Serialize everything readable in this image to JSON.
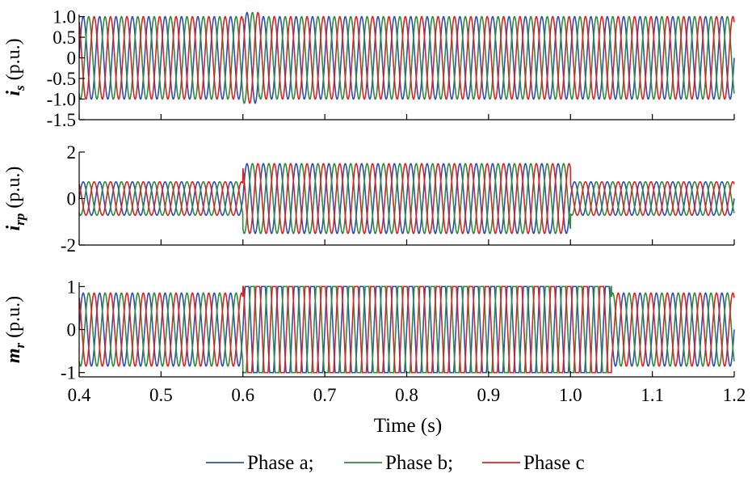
{
  "chart_data": {
    "type": "line",
    "xlabel": "Time (s)",
    "xlim": [
      0.4,
      1.2
    ],
    "xticks": [
      "0.4",
      "0.5",
      "0.6",
      "0.7",
      "0.8",
      "0.9",
      "1.0",
      "1.1",
      "1.2"
    ],
    "grid": false,
    "legend": {
      "placement": "bottom-center",
      "entries": [
        "Phase a;",
        "Phase b;",
        "Phase c"
      ]
    },
    "colors": {
      "a": "#2f4fb0",
      "b": "#2e8b3a",
      "c": "#e02020"
    },
    "frequency_hz": 50,
    "panels": [
      {
        "ylabel_main": "i",
        "ylabel_sub": "s",
        "ylabel_unit": " (p.u.)",
        "ylim": [
          -1.5,
          1.05
        ],
        "yticks": [
          {
            "v": 1.0,
            "label": "1.0"
          },
          {
            "v": 0.5,
            "label": "0.5"
          },
          {
            "v": 0,
            "label": "0"
          },
          {
            "v": -0.5,
            "label": "-0.5"
          },
          {
            "v": -1.0,
            "label": "-1.0"
          },
          {
            "v": -1.5,
            "label": "-1.5"
          }
        ],
        "segments": [
          {
            "t_start": 0.4,
            "t_end": 0.6,
            "amplitude": 1.0
          },
          {
            "t_start": 0.6,
            "t_end": 0.62,
            "amplitude": 1.1
          },
          {
            "t_start": 0.62,
            "t_end": 1.2,
            "amplitude": 1.0
          }
        ]
      },
      {
        "ylabel_main": "i",
        "ylabel_sub": "rp",
        "ylabel_unit": " (p.u.)",
        "ylim": [
          -2,
          2
        ],
        "yticks": [
          {
            "v": 2,
            "label": "2"
          },
          {
            "v": 0,
            "label": "0"
          },
          {
            "v": -2,
            "label": "-2"
          }
        ],
        "segments": [
          {
            "t_start": 0.4,
            "t_end": 0.6,
            "amplitude": 0.72
          },
          {
            "t_start": 0.6,
            "t_end": 1.0,
            "amplitude": 1.5
          },
          {
            "t_start": 1.0,
            "t_end": 1.2,
            "amplitude": 0.72
          }
        ]
      },
      {
        "ylabel_main": "m",
        "ylabel_sub": "r",
        "ylabel_unit": " (p.u.)",
        "ylim": [
          -1.1,
          1.1
        ],
        "yticks": [
          {
            "v": 1,
            "label": "1"
          },
          {
            "v": 0,
            "label": "0"
          },
          {
            "v": -1,
            "label": "-1"
          }
        ],
        "segments": [
          {
            "t_start": 0.4,
            "t_end": 0.6,
            "amplitude": 0.85
          },
          {
            "t_start": 0.6,
            "t_end": 1.05,
            "amplitude": 1.0,
            "saturated": true
          },
          {
            "t_start": 1.05,
            "t_end": 1.2,
            "amplitude": 0.85
          }
        ]
      }
    ]
  }
}
